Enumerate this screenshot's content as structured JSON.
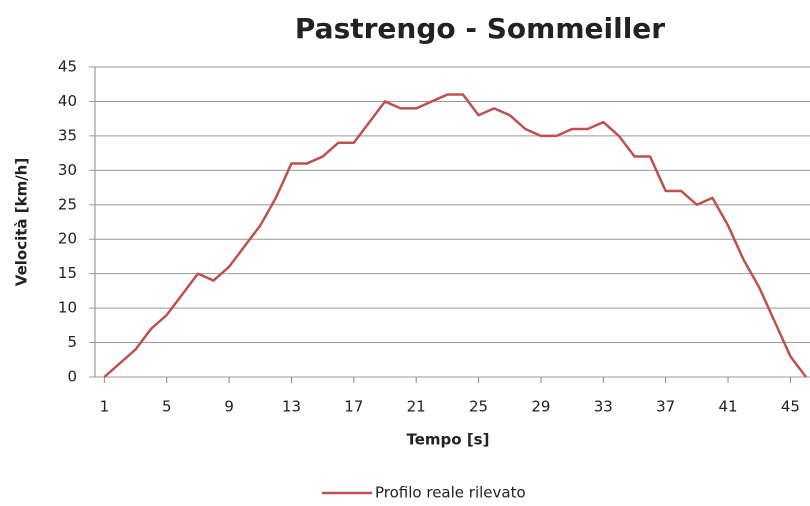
{
  "chart_data": {
    "type": "line",
    "title": "Pastrengo - Sommeiller",
    "xlabel": "Tempo [s]",
    "ylabel": "Velocità [km/h]",
    "x": [
      1,
      2,
      3,
      4,
      5,
      6,
      7,
      8,
      9,
      10,
      11,
      12,
      13,
      14,
      15,
      16,
      17,
      18,
      19,
      20,
      21,
      22,
      23,
      24,
      25,
      26,
      27,
      28,
      29,
      30,
      31,
      32,
      33,
      34,
      35,
      36,
      37,
      38,
      39,
      40,
      41,
      42,
      43,
      44,
      45,
      46
    ],
    "series": [
      {
        "name": "Profilo reale rilevato",
        "color": "#c0504d",
        "values": [
          0,
          2,
          4,
          7,
          9,
          12,
          15,
          14,
          16,
          19,
          22,
          26,
          31,
          31,
          32,
          34,
          34,
          37,
          40,
          39,
          39,
          40,
          41,
          41,
          38,
          39,
          38,
          36,
          35,
          35,
          36,
          36,
          37,
          35,
          32,
          32,
          27,
          27,
          25,
          26,
          22,
          17,
          13,
          8,
          3,
          0
        ]
      }
    ],
    "xlim": [
      0.4,
      46
    ],
    "xticks": [
      1,
      5,
      9,
      13,
      17,
      21,
      25,
      29,
      33,
      37,
      41,
      45
    ],
    "ylim": [
      0,
      45
    ],
    "yticks": [
      0,
      5,
      10,
      15,
      20,
      25,
      30,
      35,
      40,
      45
    ],
    "grid": true,
    "legend": "bottom"
  }
}
